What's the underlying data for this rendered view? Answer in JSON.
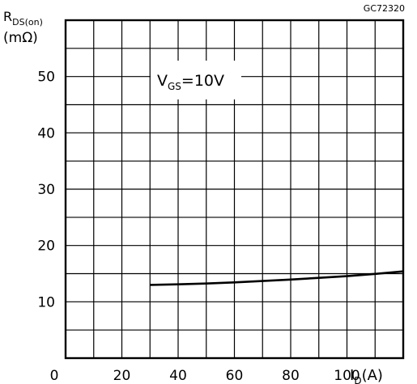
{
  "figure_code": "GC72320",
  "chart_data": {
    "type": "line",
    "ylabel": {
      "main": "R",
      "sub": "DS(on)",
      "unit": "(mΩ)"
    },
    "xlabel": {
      "main": "I",
      "sub": "D",
      "unit": "(A)"
    },
    "annotation": {
      "main": "V",
      "sub": "GS",
      "rest": "=10V"
    },
    "xlim": [
      0,
      120
    ],
    "ylim": [
      0,
      60
    ],
    "x_ticks": [
      0,
      20,
      40,
      60,
      80,
      100
    ],
    "x_tick_labels": [
      "0",
      "20",
      "40",
      "60",
      "80",
      "100"
    ],
    "y_ticks": [
      10,
      20,
      30,
      40,
      50
    ],
    "y_tick_labels": [
      "10",
      "20",
      "30",
      "40",
      "50"
    ],
    "grid": true,
    "series": [
      {
        "x": [
          30,
          40,
          50,
          60,
          70,
          80,
          90,
          100,
          110,
          120
        ],
        "y": [
          13.0,
          13.1,
          13.25,
          13.45,
          13.7,
          13.95,
          14.25,
          14.55,
          14.95,
          15.4
        ]
      }
    ]
  }
}
